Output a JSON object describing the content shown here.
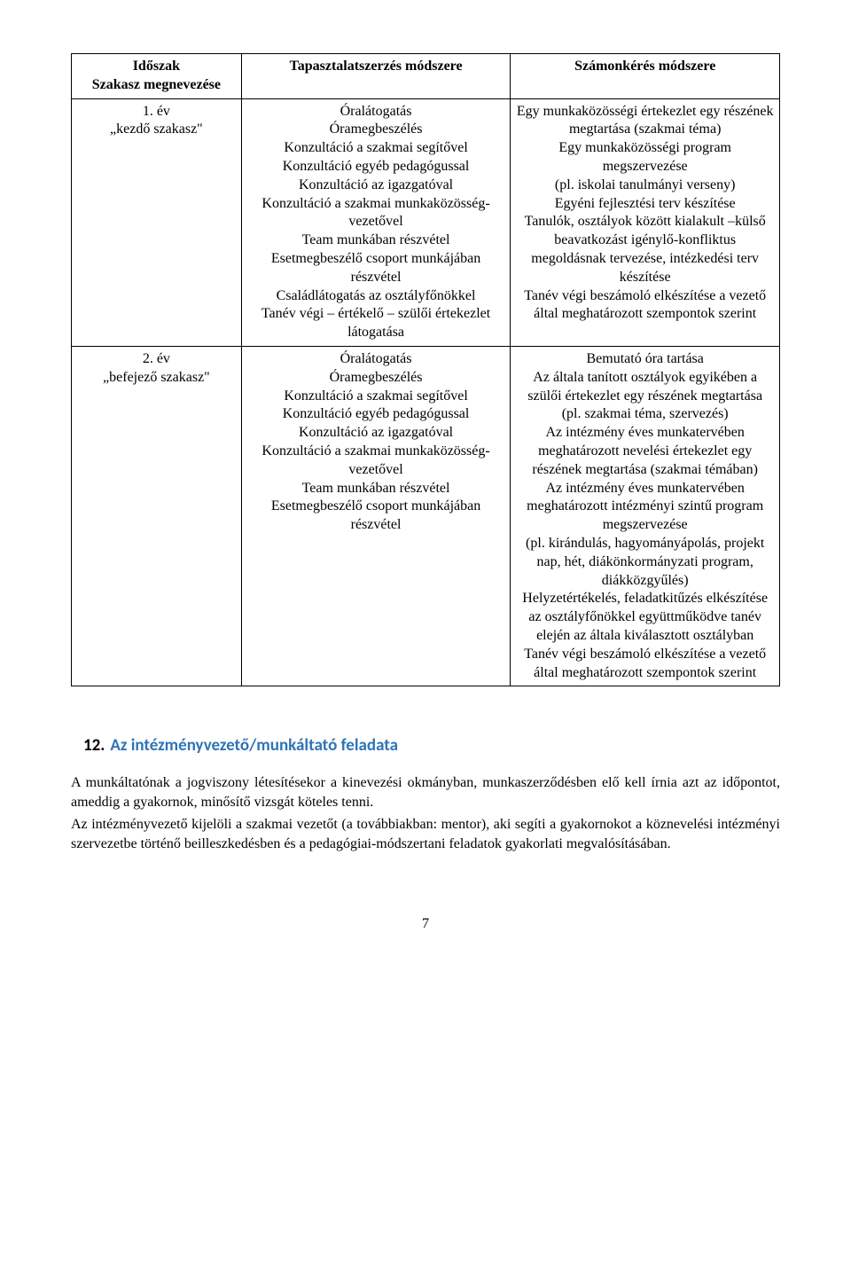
{
  "table": {
    "headers": {
      "col1a": "Időszak",
      "col1b": "Szakasz megnevezése",
      "col2": "Tapasztalatszerzés módszere",
      "col3": "Számonkérés módszere"
    },
    "row1": {
      "period_line1": "1. év",
      "period_line2": "„kezdő szakasz\"",
      "method": "Óralátogatás\nÓramegbeszélés\nKonzultáció a szakmai segítővel\nKonzultáció egyéb pedagógussal\nKonzultáció az igazgatóval\nKonzultáció a szakmai munkaközösség-vezetővel\nTeam munkában részvétel\nEsetmegbeszélő csoport munkájában részvétel\nCsaládlátogatás az osztályfőnökkel\nTanév végi – értékelő – szülői értekezlet látogatása",
      "assessment": "Egy munkaközösségi értekezlet egy részének megtartása (szakmai téma)\nEgy munkaközösségi program megszervezése\n(pl. iskolai tanulmányi verseny)\nEgyéni fejlesztési terv készítése\nTanulók, osztályok között kialakult –külső beavatkozást igénylő-konfliktus megoldásnak tervezése, intézkedési terv készítése\nTanév végi beszámoló elkészítése a vezető által meghatározott szempontok szerint"
    },
    "row2": {
      "period_line1": "2. év",
      "period_line2": "„befejező szakasz\"",
      "method": "Óralátogatás\nÓramegbeszélés\nKonzultáció a szakmai segítővel\nKonzultáció egyéb pedagógussal\nKonzultáció az igazgatóval\nKonzultáció a szakmai munkaközösség-vezetővel\nTeam munkában részvétel\nEsetmegbeszélő csoport munkájában részvétel",
      "assessment": "Bemutató óra tartása\nAz általa tanított osztályok egyikében a szülői értekezlet egy részének megtartása\n(pl. szakmai téma, szervezés)\nAz intézmény éves munkatervében meghatározott nevelési értekezlet egy részének megtartása (szakmai témában)\nAz intézmény éves munkatervében meghatározott intézményi szintű program megszervezése\n(pl. kirándulás, hagyományápolás, projekt nap, hét, diákönkormányzati program, diákközgyűlés)\nHelyzetértékelés, feladatkitűzés elkészítése az osztályfőnökkel együttműködve tanév elején az általa kiválasztott osztályban\nTanév végi beszámoló elkészítése a vezető által meghatározott szempontok szerint"
    }
  },
  "section": {
    "number": "12.",
    "title": "Az intézményvezető/munkáltató feladata"
  },
  "paragraph1": "A munkáltatónak a jogviszony létesítésekor a kinevezési okmányban, munkaszerződésben elő kell írnia azt az időpontot, ameddig a gyakornok, minősítő vizsgát köteles tenni.",
  "paragraph2": "Az intézményvezető kijelöli a szakmai vezetőt (a továbbiakban: mentor), aki segíti a gyakornokot a köznevelési intézményi szervezetbe történő beilleszkedésben és a pedagógiai-módszertani feladatok gyakorlati megvalósításában.",
  "page_number": "7"
}
